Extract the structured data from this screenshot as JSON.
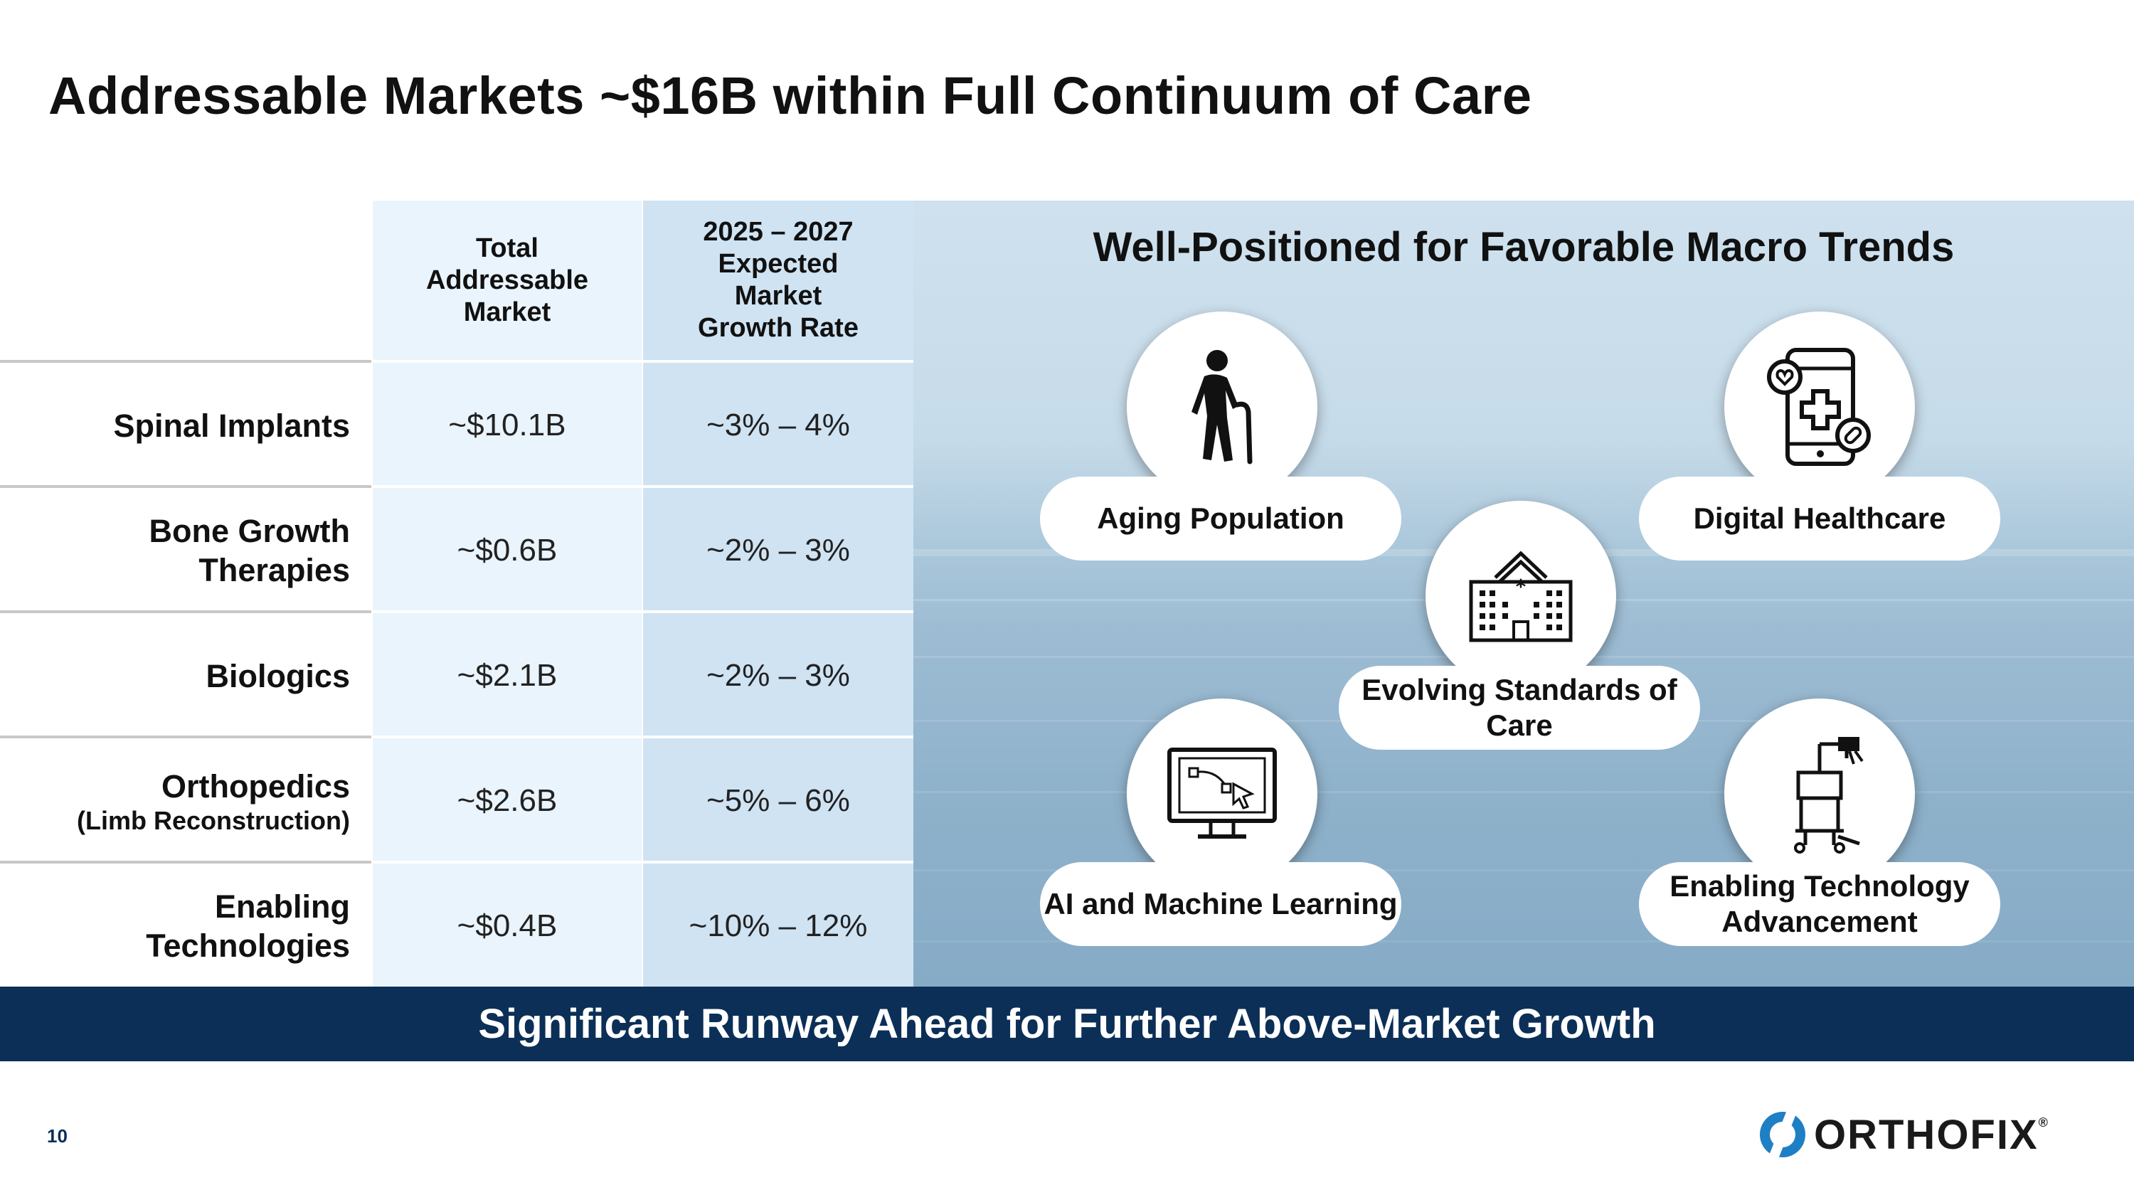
{
  "title": "Addressable Markets ~$16B within Full Continuum of Care",
  "table": {
    "headers": [
      "Total Addressable Market",
      "2025 – 2027 Expected Market Growth Rate"
    ],
    "rows": [
      {
        "label": "Spinal Implants",
        "sub": "",
        "tam": "~$10.1B",
        "growth": "~3% – 4%"
      },
      {
        "label": "Bone Growth Therapies",
        "sub": "",
        "tam": "~$0.6B",
        "growth": "~2% – 3%"
      },
      {
        "label": "Biologics",
        "sub": "",
        "tam": "~$2.1B",
        "growth": "~2% – 3%"
      },
      {
        "label": "Orthopedics",
        "sub": "(Limb Reconstruction)",
        "tam": "~$2.6B",
        "growth": "~5% – 6%"
      },
      {
        "label": "Enabling Technologies",
        "sub": "",
        "tam": "~$0.4B",
        "growth": "~10% – 12%"
      }
    ]
  },
  "trends": {
    "title": "Well-Positioned for Favorable Macro Trends",
    "items": [
      {
        "label": "Aging Population",
        "icon": "elderly-person-icon"
      },
      {
        "label": "Digital Healthcare",
        "icon": "smartphone-health-icon"
      },
      {
        "label": "Evolving Standards of Care",
        "icon": "hospital-icon"
      },
      {
        "label": "AI and Machine Learning",
        "icon": "computer-monitor-icon"
      },
      {
        "label": "Enabling Technology Advancement",
        "icon": "surgical-robot-icon"
      }
    ]
  },
  "banner": "Significant Runway Ahead for Further Above-Market Growth",
  "page_number": "10",
  "logo": {
    "text": "ORTHOFIX",
    "reg": "®"
  },
  "colors": {
    "navy": "#0b2f57",
    "col_light": "#eaf4fc",
    "col_mid": "#cfe3f3",
    "logo_blue": "#1f7fc4"
  }
}
